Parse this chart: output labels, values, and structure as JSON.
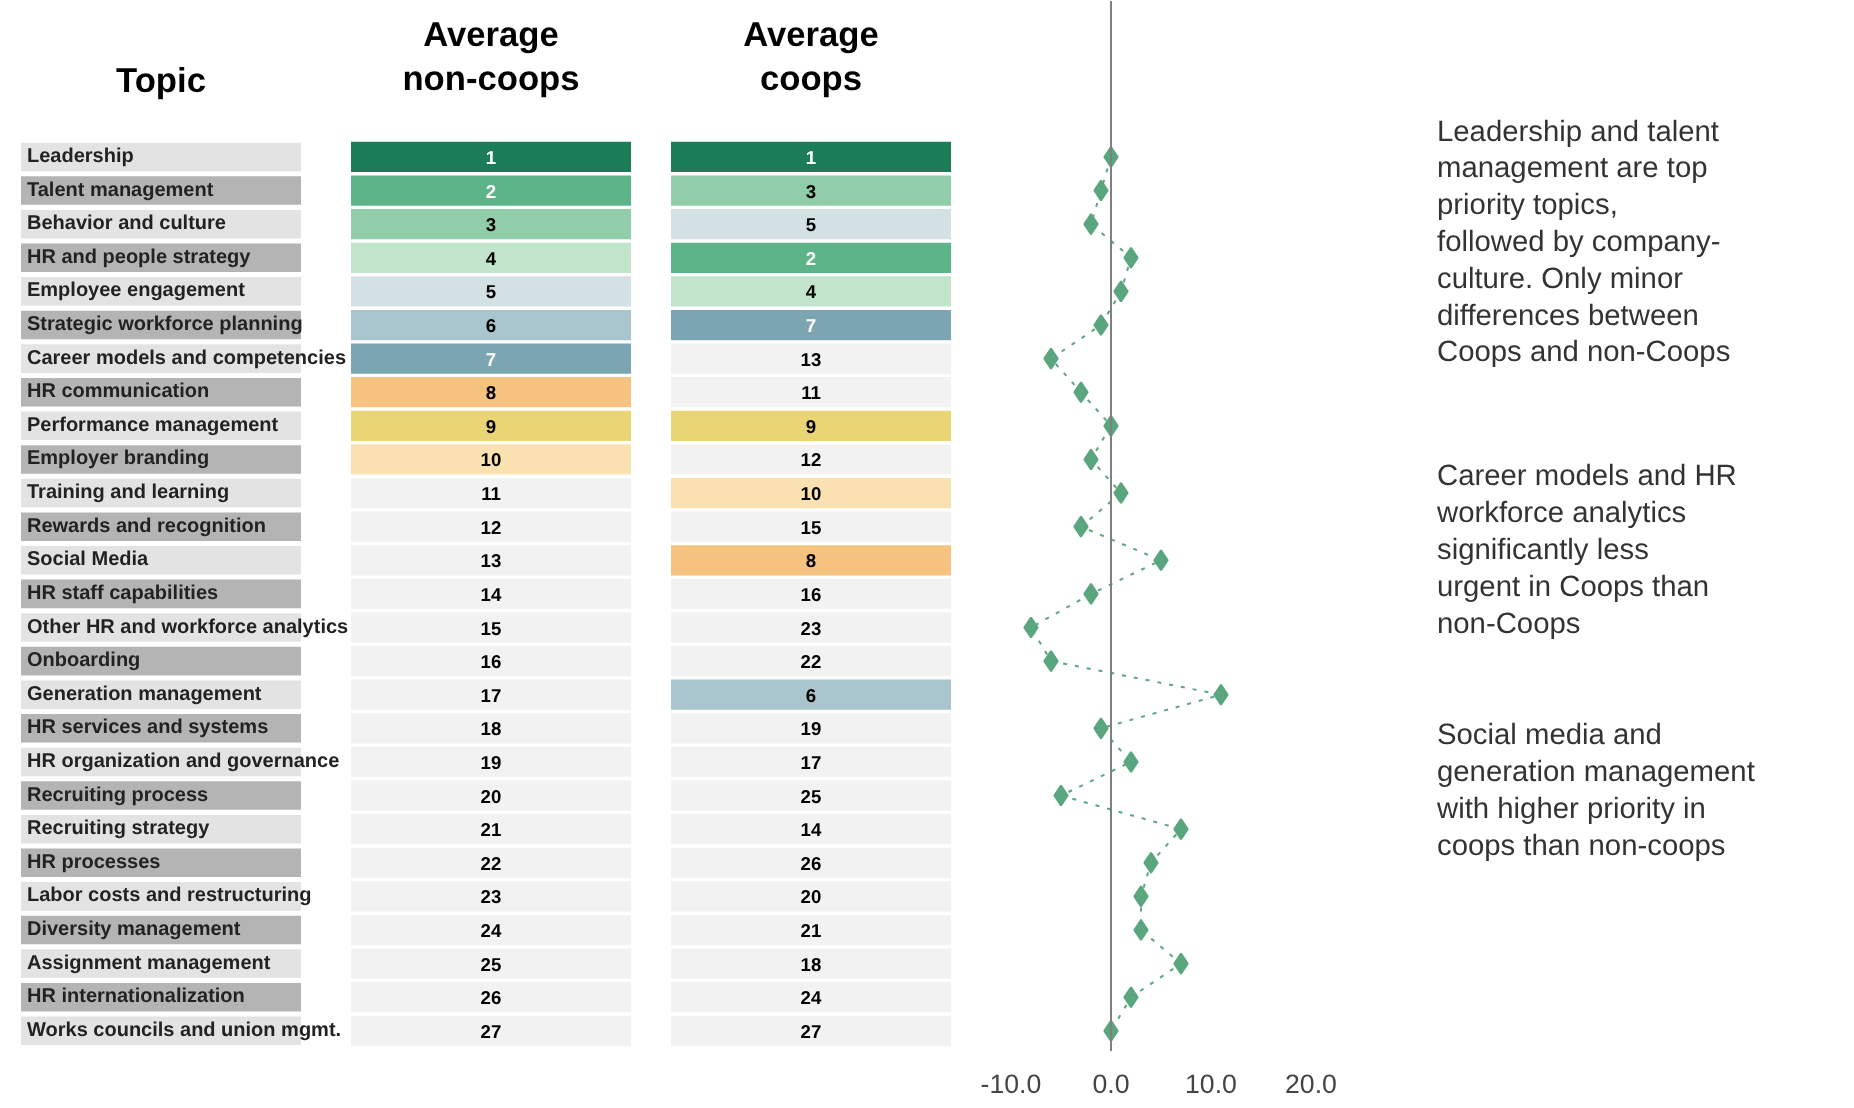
{
  "chart_data": [
    {
      "type": "heatmap",
      "ylabel": "Topic",
      "data_labels": true,
      "categories": [
        "Average non-coops",
        "Average coops"
      ],
      "y_categories": [
        "Leadership",
        "Talent management",
        "Behavior and culture",
        "HR and people strategy",
        "Employee engagement",
        "Strategic workforce planning",
        "Career models and competencies",
        "HR communication",
        "Performance management",
        "Employer branding",
        "Training and learning",
        "Rewards and recognition",
        "Social Media",
        "HR staff capabilities",
        "Other HR and workforce analytics",
        "Onboarding",
        "Generation management",
        "HR services and systems",
        "HR organization and governance",
        "Recruiting process",
        "Recruiting strategy",
        "HR processes",
        "Labor costs and restructuring",
        "Diversity management",
        "Assignment management",
        "HR internationalization",
        "Works councils and union mgmt."
      ],
      "cells": [
        [
          1,
          1
        ],
        [
          2,
          3
        ],
        [
          3,
          5
        ],
        [
          4,
          2
        ],
        [
          5,
          4
        ],
        [
          6,
          7
        ],
        [
          7,
          13
        ],
        [
          8,
          11
        ],
        [
          9,
          9
        ],
        [
          10,
          12
        ],
        [
          11,
          10
        ],
        [
          12,
          15
        ],
        [
          13,
          8
        ],
        [
          14,
          16
        ],
        [
          15,
          23
        ],
        [
          16,
          22
        ],
        [
          17,
          6
        ],
        [
          18,
          19
        ],
        [
          19,
          17
        ],
        [
          20,
          25
        ],
        [
          21,
          14
        ],
        [
          22,
          26
        ],
        [
          23,
          20
        ],
        [
          24,
          21
        ],
        [
          25,
          18
        ],
        [
          26,
          24
        ],
        [
          27,
          27
        ]
      ],
      "colors": [
        [
          "#1b7d57",
          "#1b7d57"
        ],
        [
          "#5cb488",
          "#91cda8"
        ],
        [
          "#91cda8",
          "#d3e0e4"
        ],
        [
          "#c2e4cb",
          "#5cb488"
        ],
        [
          "#d3e0e4",
          "#c2e4cb"
        ],
        [
          "#a8c4cc",
          "#7ba6b1"
        ],
        [
          "#7ba6b1",
          "#f2f2f2"
        ],
        [
          "#f6c27f",
          "#f2f2f2"
        ],
        [
          "#e9d574",
          "#e9d574"
        ],
        [
          "#fae1b1",
          "#f2f2f2"
        ],
        [
          "#f2f2f2",
          "#fae1b1"
        ],
        [
          "#f2f2f2",
          "#f2f2f2"
        ],
        [
          "#f2f2f2",
          "#f6c27f"
        ],
        [
          "#f2f2f2",
          "#f2f2f2"
        ],
        [
          "#f2f2f2",
          "#f2f2f2"
        ],
        [
          "#f2f2f2",
          "#f2f2f2"
        ],
        [
          "#f2f2f2",
          "#a8c4cc"
        ],
        [
          "#f2f2f2",
          "#f2f2f2"
        ],
        [
          "#f2f2f2",
          "#f2f2f2"
        ],
        [
          "#f2f2f2",
          "#f2f2f2"
        ],
        [
          "#f2f2f2",
          "#f2f2f2"
        ],
        [
          "#f2f2f2",
          "#f2f2f2"
        ],
        [
          "#f2f2f2",
          "#f2f2f2"
        ],
        [
          "#f2f2f2",
          "#f2f2f2"
        ],
        [
          "#f2f2f2",
          "#f2f2f2"
        ],
        [
          "#f2f2f2",
          "#f2f2f2"
        ],
        [
          "#f2f2f2",
          "#f2f2f2"
        ]
      ]
    },
    {
      "type": "line",
      "orientation": "horizontal",
      "categories": [
        null,
        null,
        null,
        null,
        null,
        null,
        null,
        null,
        null,
        null,
        null,
        null,
        null,
        null,
        null,
        null,
        null,
        null,
        null,
        null,
        null,
        null,
        null,
        null,
        null,
        null,
        null
      ],
      "values": [
        0,
        -1,
        -2,
        2,
        1,
        -1,
        -6,
        -3,
        0,
        -2,
        1,
        -3,
        5,
        -2,
        -8,
        -6,
        11,
        -1,
        2,
        -5,
        7,
        4,
        3,
        3,
        7,
        2,
        0
      ],
      "color": "#5aa67e",
      "marker": "diamond",
      "line_style": "dotted",
      "grid": false,
      "tick_labels": "x",
      "xlim": [
        -10,
        20
      ],
      "xticks": [
        {
          "value": -10,
          "label": "-10.0"
        },
        {
          "value": 0,
          "label": "0.0"
        },
        {
          "value": 10,
          "label": "10.0"
        },
        {
          "value": 20,
          "label": "20.0"
        }
      ],
      "ref_lines": [
        {
          "axis": "x",
          "value": 0,
          "color": "#808080"
        }
      ]
    },
    {
      "type": "other",
      "annotations": [
        "Leadership and talent management are top priority topics, followed by company-culture. Only minor differences between Coops and non-Coops",
        "Career models and HR workforce analytics significantly less urgent in Coops than non-Coops",
        "Social media and generation management with higher priority in coops than non-coops"
      ]
    }
  ]
}
